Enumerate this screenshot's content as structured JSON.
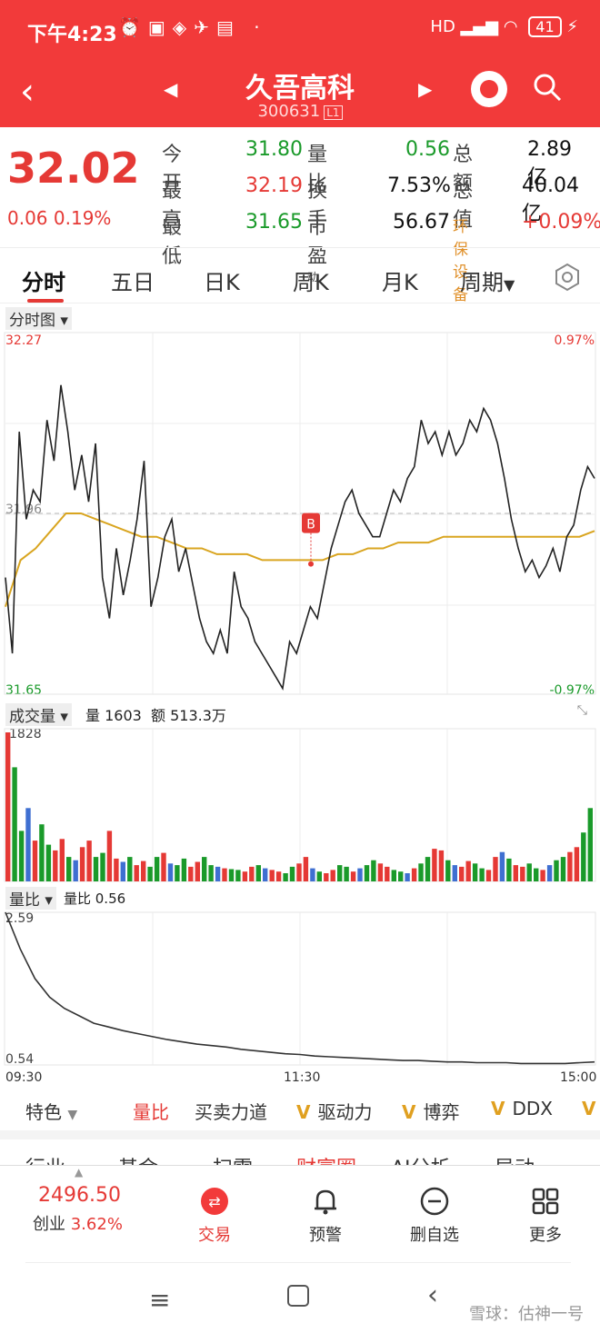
{
  "status": {
    "time": "下午4:23",
    "network": "HD",
    "battery": "41"
  },
  "header": {
    "title": "久吾高科",
    "code": "300631",
    "code_tag": "L1"
  },
  "quote": {
    "price": "32.02",
    "change": "0.06",
    "change_pct": "0.19%",
    "rows": [
      {
        "l1": "今开",
        "v1": "31.80",
        "l2": "量比",
        "v2": "0.56",
        "l3": "总额",
        "v3": "2.89亿"
      },
      {
        "l1": "最高",
        "v1": "32.19",
        "l2": "换手",
        "v2": "7.53%",
        "l3": "总值",
        "v3": "40.04亿"
      },
      {
        "l1": "最低",
        "v1": "31.65",
        "l2": "市盈",
        "l2_sup": "动",
        "v2": "56.67",
        "l3": "环保设备",
        "v3": "+0.09%"
      }
    ]
  },
  "tabs": [
    "分时",
    "五日",
    "日K",
    "周K",
    "月K",
    "周期"
  ],
  "main_chart": {
    "label": "分时图",
    "y_high": "32.27",
    "y_low": "31.65",
    "pct_high": "0.97%",
    "pct_low": "-0.97%",
    "mid_label": "31.96",
    "marker": "B"
  },
  "volume": {
    "label": "成交量",
    "info_vol": "量 1603",
    "info_amt": "额 513.3万",
    "max": "1828"
  },
  "ratio": {
    "label": "量比",
    "info": "量比 0.56",
    "max": "2.59",
    "min": "0.54",
    "t_start": "09:30",
    "t_mid": "11:30",
    "t_end": "15:00"
  },
  "subtabs": {
    "first": "特色",
    "items": [
      "量比",
      "买卖力道",
      "驱动力",
      "博弈",
      "DDX"
    ]
  },
  "cut_tabs": [
    "行业",
    "基金",
    "扫雷",
    "财富圈",
    "AI分析",
    "异动"
  ],
  "bottom": {
    "index_value": "2496.50",
    "index_name": "创业",
    "index_pct": "3.62%",
    "nav": [
      "交易",
      "预警",
      "删自选",
      "更多"
    ]
  },
  "watermark": "雪球：估神一号",
  "chart_data": [
    {
      "type": "line",
      "title": "分时图",
      "ylim": [
        31.65,
        32.27
      ],
      "series": [
        {
          "values": [
            31.85,
            31.72,
            32.1,
            31.95,
            32.0,
            31.98,
            32.12,
            32.05,
            32.18,
            32.1,
            32.0,
            32.06,
            31.98,
            32.08,
            31.85,
            31.78,
            31.9,
            31.82,
            31.88,
            31.95,
            32.05,
            31.8,
            31.85,
            31.92,
            31.95,
            31.86,
            31.9,
            31.84,
            31.78,
            31.74,
            31.72,
            31.76,
            31.72,
            31.86,
            31.8,
            31.78,
            31.74,
            31.72,
            31.7,
            31.68,
            31.66,
            31.74,
            31.72,
            31.76,
            31.8,
            31.78,
            31.84,
            31.9,
            31.94,
            31.98,
            32.0,
            31.96,
            31.94,
            31.92,
            31.92,
            31.96,
            32.0,
            31.98,
            32.02,
            32.04,
            32.12,
            32.08,
            32.1,
            32.06,
            32.1,
            32.06,
            32.08,
            32.12,
            32.1,
            32.14,
            32.12,
            32.08,
            32.02,
            31.95,
            31.9,
            31.86,
            31.88,
            31.85,
            31.87,
            31.9,
            31.86,
            31.92,
            31.94,
            32.0,
            32.04,
            32.02
          ]
        },
        {
          "values": [
            31.8,
            31.88,
            31.9,
            31.93,
            31.96,
            31.96,
            31.95,
            31.94,
            31.93,
            31.92,
            31.92,
            31.91,
            31.9,
            31.9,
            31.89,
            31.89,
            31.89,
            31.88,
            31.88,
            31.88,
            31.88,
            31.88,
            31.89,
            31.89,
            31.9,
            31.9,
            31.91,
            31.91,
            31.91,
            31.92,
            31.92,
            31.92,
            31.92,
            31.92,
            31.92,
            31.92,
            31.92,
            31.92,
            31.92,
            31.93
          ]
        }
      ]
    },
    {
      "type": "bar",
      "title": "成交量",
      "ylim": [
        0,
        1828
      ],
      "series": [
        {
          "values": [
            1828,
            1400,
            620,
            900,
            500,
            700,
            450,
            380,
            520,
            300,
            260,
            420,
            500,
            300,
            350,
            620,
            280,
            240,
            300,
            200,
            250,
            180,
            300,
            350,
            220,
            200,
            280,
            180,
            240,
            300,
            200,
            180,
            160,
            150,
            140,
            120,
            180,
            200,
            160,
            140,
            120,
            100,
            180,
            220,
            300,
            160,
            120,
            100,
            140,
            200,
            180,
            120,
            160,
            200,
            260,
            220,
            180,
            140,
            120,
            100,
            160,
            220,
            300,
            400,
            380,
            260,
            200,
            180,
            250,
            220,
            160,
            140,
            300,
            360,
            280,
            200,
            180,
            220,
            160,
            140,
            200,
            260,
            300,
            360,
            420,
            600,
            900
          ]
        }
      ]
    },
    {
      "type": "line",
      "title": "量比",
      "ylim": [
        0.54,
        2.59
      ],
      "series": [
        {
          "values": [
            2.59,
            2.1,
            1.7,
            1.45,
            1.3,
            1.2,
            1.1,
            1.05,
            1.0,
            0.96,
            0.92,
            0.88,
            0.85,
            0.82,
            0.8,
            0.78,
            0.75,
            0.73,
            0.71,
            0.69,
            0.68,
            0.66,
            0.65,
            0.64,
            0.63,
            0.62,
            0.61,
            0.6,
            0.6,
            0.59,
            0.58,
            0.58,
            0.57,
            0.57,
            0.57,
            0.56,
            0.56,
            0.56,
            0.56,
            0.57,
            0.58
          ]
        }
      ]
    }
  ]
}
